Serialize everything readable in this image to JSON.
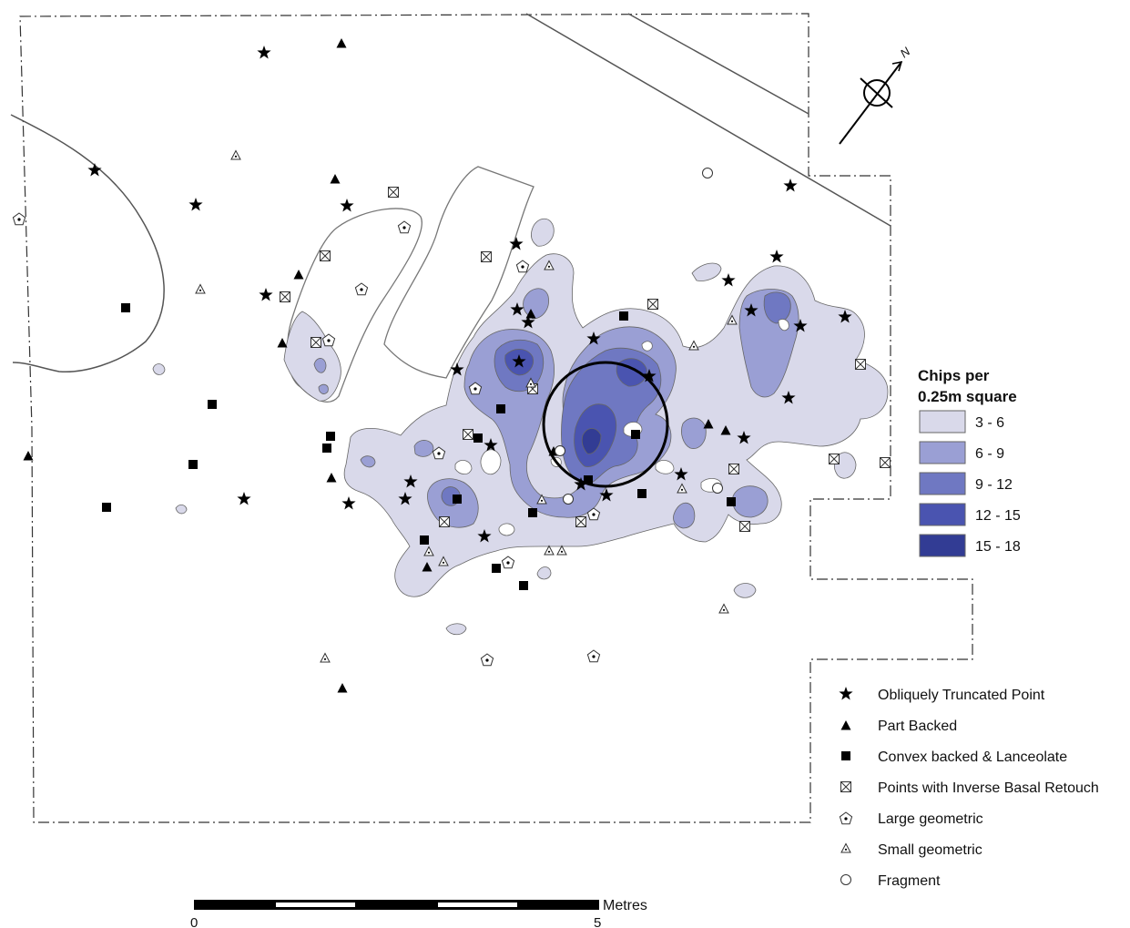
{
  "legend_density": {
    "title_line1": "Chips per",
    "title_line2": "0.25m square",
    "classes": [
      {
        "label": "3 - 6",
        "color": "#d9d9ea"
      },
      {
        "label": "6 - 9",
        "color": "#9a9fd4"
      },
      {
        "label": "9 - 12",
        "color": "#6f78c2"
      },
      {
        "label": "12 - 15",
        "color": "#4a54b0"
      },
      {
        "label": "15 - 18",
        "color": "#323c94"
      }
    ]
  },
  "legend_artefacts": [
    {
      "label": "Obliquely Truncated Point",
      "icon": "star-icon"
    },
    {
      "label": "Part Backed",
      "icon": "triangle-icon"
    },
    {
      "label": "Convex backed & Lanceolate",
      "icon": "square-icon"
    },
    {
      "label": "Points with Inverse Basal Retouch",
      "icon": "crossed-square-icon"
    },
    {
      "label": "Large geometric",
      "icon": "pentagon-dot-icon"
    },
    {
      "label": "Small geometric",
      "icon": "small-triangle-dot-icon"
    },
    {
      "label": "Fragment",
      "icon": "circle-icon"
    }
  ],
  "scale": {
    "unit": "Metres",
    "start": "0",
    "end": "5"
  },
  "north": {
    "label": "N"
  }
}
